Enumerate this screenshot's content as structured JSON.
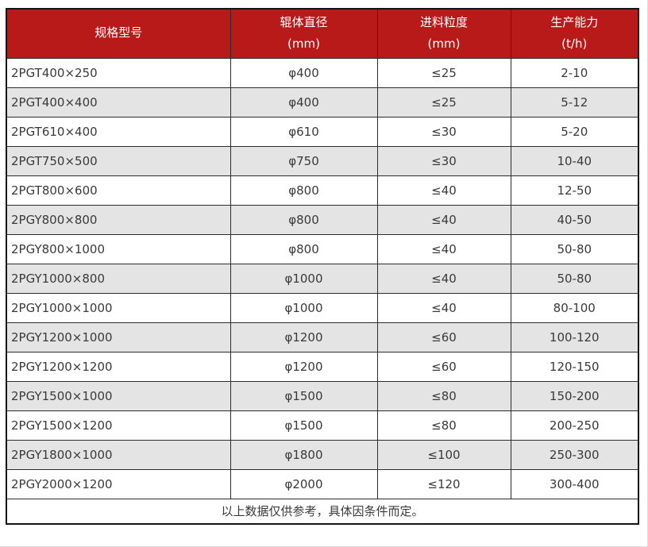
{
  "table": {
    "columns": [
      {
        "id": "model",
        "title": "规格型号",
        "unit": ""
      },
      {
        "id": "roller-diameter",
        "title": "辊体直径",
        "unit": "(mm)"
      },
      {
        "id": "feed-size",
        "title": "进料粒度",
        "unit": "(mm)"
      },
      {
        "id": "capacity",
        "title": "生产能力",
        "unit": "(t/h)"
      }
    ],
    "rows": [
      [
        "2PGT400×250",
        "φ400",
        "≤25",
        "2-10"
      ],
      [
        "2PGT400×400",
        "φ400",
        "≤25",
        "5-12"
      ],
      [
        "2PGT610×400",
        "φ610",
        "≤30",
        "5-20"
      ],
      [
        "2PGT750×500",
        "φ750",
        "≤30",
        "10-40"
      ],
      [
        "2PGT800×600",
        "φ800",
        "≤40",
        "12-50"
      ],
      [
        "2PGY800×800",
        "φ800",
        "≤40",
        "40-50"
      ],
      [
        "2PGY800×1000",
        "φ800",
        "≤40",
        "50-80"
      ],
      [
        "2PGY1000×800",
        "φ1000",
        "≤40",
        "50-80"
      ],
      [
        "2PGY1000×1000",
        "φ1000",
        "≤40",
        "80-100"
      ],
      [
        "2PGY1200×1000",
        "φ1200",
        "≤60",
        "100-120"
      ],
      [
        "2PGY1200×1200",
        "φ1200",
        "≤60",
        "120-150"
      ],
      [
        "2PGY1500×1000",
        "φ1500",
        "≤80",
        "150-200"
      ],
      [
        "2PGY1500×1200",
        "φ1500",
        "≤80",
        "200-250"
      ],
      [
        "2PGY1800×1000",
        "φ1800",
        "≤100",
        "250-300"
      ],
      [
        "2PGY2000×1200",
        "φ2000",
        "≤120",
        "300-400"
      ]
    ],
    "footnote": "以上数据仅供参考，具体因条件而定。"
  },
  "colors": {
    "header_bg": "#b81a1a",
    "header_text": "#ffffff",
    "row_alt_bg": "#e4e4e4",
    "row_bg": "#ffffff",
    "border_inner": "#2c2c2c",
    "border_outer": "#141414",
    "text": "#3a3a3a"
  }
}
